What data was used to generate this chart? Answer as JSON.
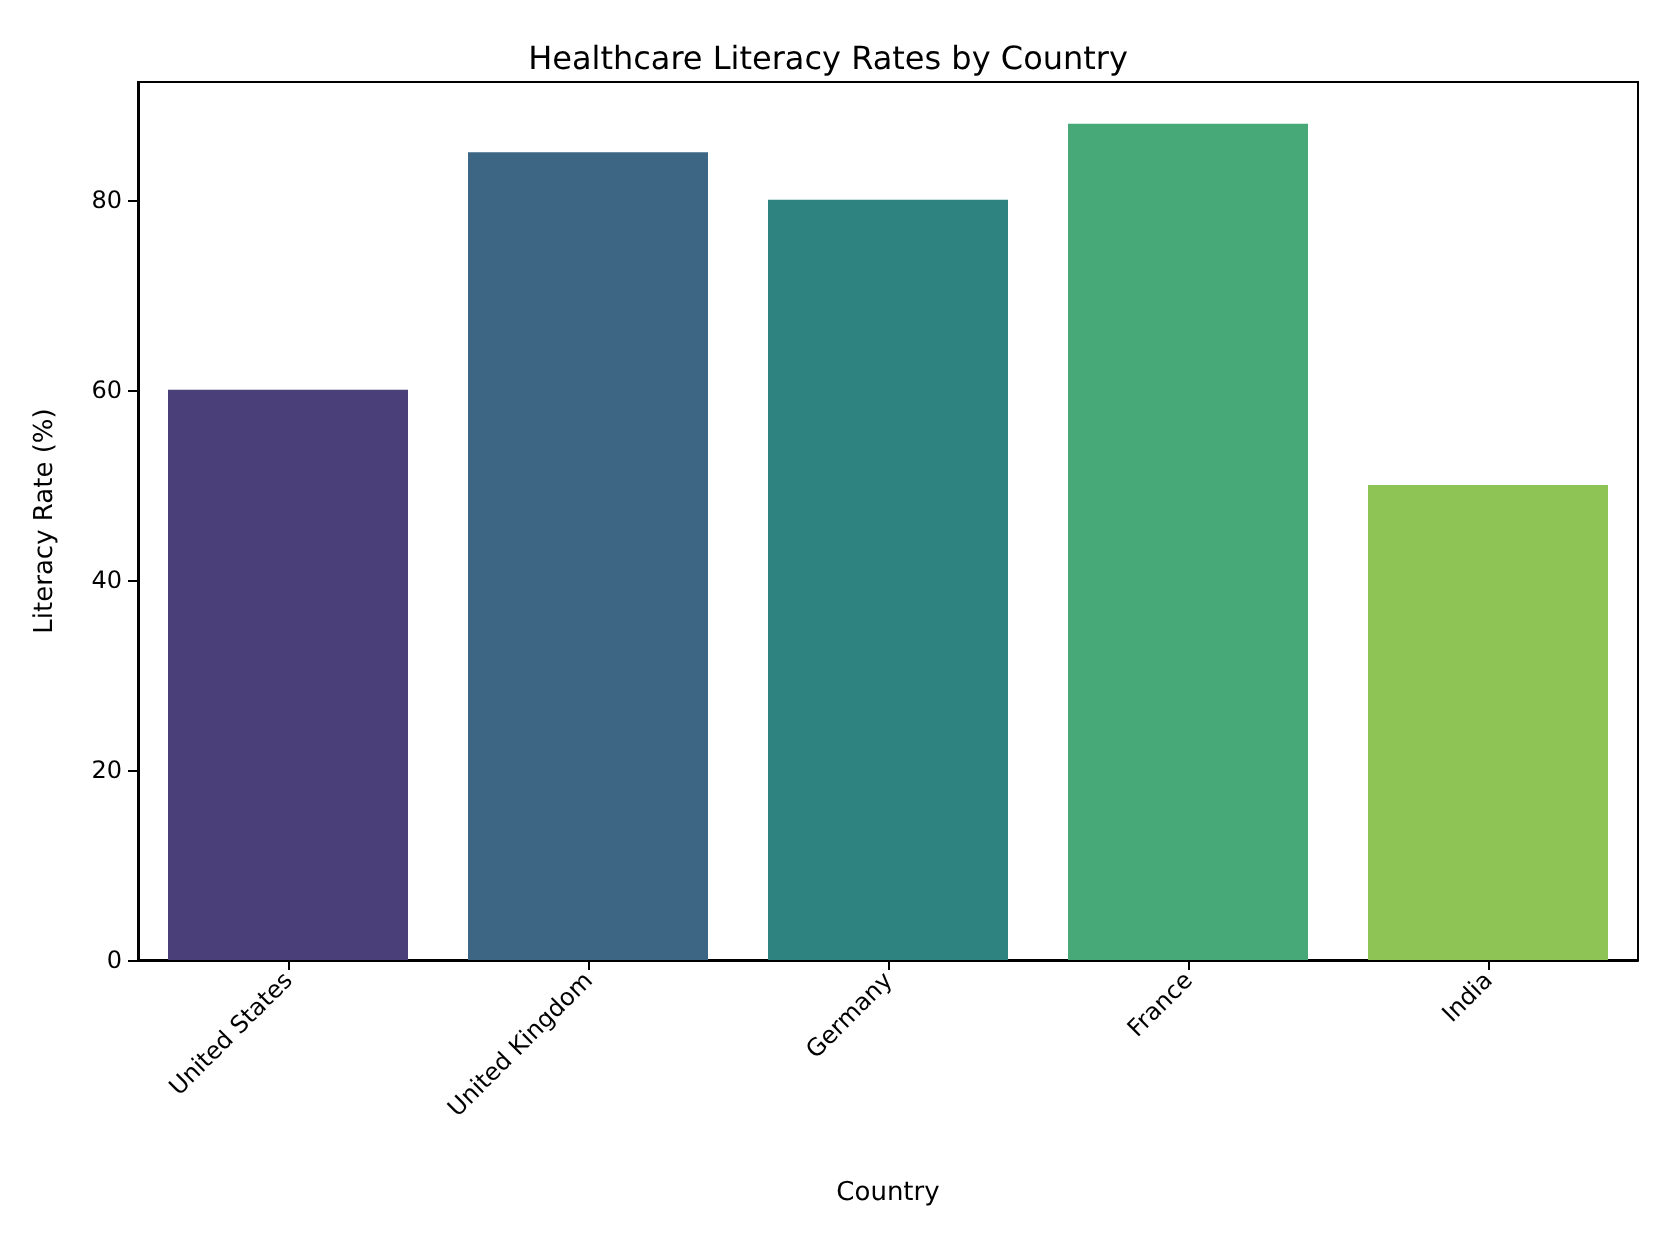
{
  "chart_data": {
    "type": "bar",
    "title": "Healthcare Literacy Rates by Country",
    "xlabel": "Country",
    "ylabel": "Literacy Rate (%)",
    "categories": [
      "United States",
      "United Kingdom",
      "Germany",
      "France",
      "India"
    ],
    "values": [
      60,
      85,
      80,
      88,
      50
    ],
    "colors": [
      "#4a3f78",
      "#3c6683",
      "#2e8380",
      "#48a978",
      "#8ec456"
    ],
    "ylim": [
      0,
      92.4
    ],
    "yticks": [
      0,
      20,
      40,
      60,
      80
    ],
    "grid": false
  }
}
